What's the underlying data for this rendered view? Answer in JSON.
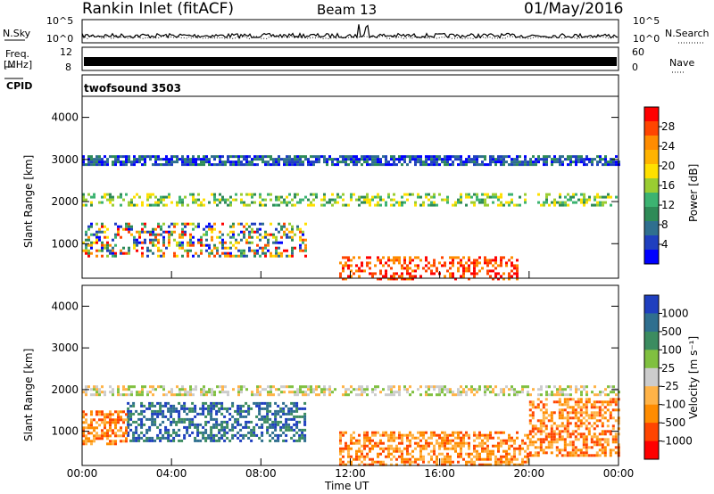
{
  "header": {
    "station": "Rankin Inlet (fitACF)",
    "beam": "Beam 13",
    "date": "01/May/2016"
  },
  "top_panels": {
    "nsky_label": "N.Sky",
    "nsearch_label": "N.Search",
    "freq_label_line1": "Freq.",
    "freq_label_line2": "[MHz]",
    "nave_label": "Nave",
    "cpid_label": "CPID",
    "cpid_value": "twofsound 3503",
    "nsky_ticks": [
      "10^5",
      "10^0"
    ],
    "nsearch_ticks": [
      "10^5",
      "10^0"
    ],
    "freq_ticks": [
      "12",
      "8"
    ],
    "nave_ticks": [
      "60",
      "0"
    ]
  },
  "chart_data": [
    {
      "type": "heatmap",
      "name": "power",
      "ylabel": "Slant Range [km]",
      "xlabel": "Time UT",
      "x_ticks": [
        "00:00",
        "04:00",
        "08:00",
        "12:00",
        "16:00",
        "20:00",
        "00:00"
      ],
      "y_ticks": [
        1000,
        2000,
        3000,
        4000
      ],
      "ylim": [
        180,
        4500
      ],
      "colorbar_label": "Power [dB]",
      "colorbar_ticks": [
        "28",
        "24",
        "20",
        "16",
        "12",
        "8",
        "4"
      ],
      "colorbar_colors": [
        "#ff0000",
        "#ff4500",
        "#ff8c00",
        "#ffb300",
        "#ffe000",
        "#9acd32",
        "#3cb371",
        "#2e8b57",
        "#2f6f8f",
        "#1f3fbf",
        "#0000ff"
      ],
      "regions": [
        {
          "t0": 0.0,
          "t1": 10.0,
          "r0": 700,
          "r1": 1500,
          "level": "mixed-high"
        },
        {
          "t0": 11.5,
          "t1": 19.5,
          "r0": 180,
          "r1": 700,
          "level": "high"
        },
        {
          "t0": 0.0,
          "t1": 24.0,
          "r0": 1900,
          "r1": 2200,
          "level": "mid"
        },
        {
          "t0": 0.0,
          "t1": 24.0,
          "r0": 2900,
          "r1": 3100,
          "level": "low"
        }
      ]
    },
    {
      "type": "heatmap",
      "name": "velocity",
      "ylabel": "Slant Range [km]",
      "xlabel": "Time UT",
      "x_ticks": [
        "00:00",
        "04:00",
        "08:00",
        "12:00",
        "16:00",
        "20:00",
        "00:00"
      ],
      "y_ticks": [
        1000,
        2000,
        3000,
        4000
      ],
      "ylim": [
        180,
        4500
      ],
      "colorbar_label": "Velocity [m s⁻¹]",
      "colorbar_ticks": [
        "1000",
        "500",
        "100",
        "25",
        "-25",
        "-100",
        "-500",
        "-1000"
      ],
      "colorbar_colors": [
        "#1f3fbf",
        "#2f6f8f",
        "#3c8c60",
        "#80c040",
        "#cccccc",
        "#ffb347",
        "#ff8c00",
        "#ff4500",
        "#ff0000"
      ],
      "regions": [
        {
          "t0": 2.0,
          "t1": 10.0,
          "r0": 800,
          "r1": 1700,
          "level": "positive"
        },
        {
          "t0": 0.0,
          "t1": 2.0,
          "r0": 700,
          "r1": 1500,
          "level": "negative"
        },
        {
          "t0": 11.5,
          "t1": 20.0,
          "r0": 180,
          "r1": 1000,
          "level": "negative"
        },
        {
          "t0": 20.0,
          "t1": 24.0,
          "r0": 400,
          "r1": 1800,
          "level": "negative"
        },
        {
          "t0": 0.0,
          "t1": 24.0,
          "r0": 1900,
          "r1": 2100,
          "level": "near-zero"
        }
      ]
    }
  ]
}
